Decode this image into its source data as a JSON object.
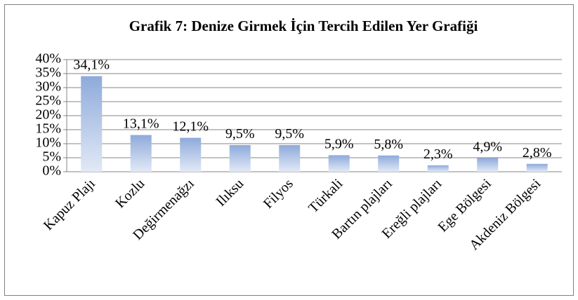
{
  "chart_data": {
    "type": "bar",
    "title": "Grafik 7: Denize Girmek İçin Tercih Edilen Yer Grafiği",
    "categories": [
      "Kapuz Plajı",
      "Kozlu",
      "Değirmenağzı",
      "Ilıksu",
      "Filyos",
      "Türkali",
      "Bartın plajları",
      "Ereğli plajları",
      "Ege Bölgesi",
      "Akdeniz Bölgesi"
    ],
    "values": [
      34.1,
      13.1,
      12.1,
      9.5,
      9.5,
      5.9,
      5.8,
      2.3,
      4.9,
      2.8
    ],
    "value_labels": [
      "34,1%",
      "13,1%",
      "12,1%",
      "9,5%",
      "9,5%",
      "5,9%",
      "5,8%",
      "2,3%",
      "4,9%",
      "2,8%"
    ],
    "color": "#8eaadb",
    "ylim": [
      0,
      40
    ],
    "yticks": [
      {
        "value": 0,
        "label": "0%"
      },
      {
        "value": 5,
        "label": "5%"
      },
      {
        "value": 10,
        "label": "10%"
      },
      {
        "value": 15,
        "label": "15%"
      },
      {
        "value": 20,
        "label": "20%"
      },
      {
        "value": 25,
        "label": "25%"
      },
      {
        "value": 30,
        "label": "30%"
      },
      {
        "value": 35,
        "label": "35%"
      },
      {
        "value": 40,
        "label": "40%"
      }
    ],
    "grid": true
  }
}
